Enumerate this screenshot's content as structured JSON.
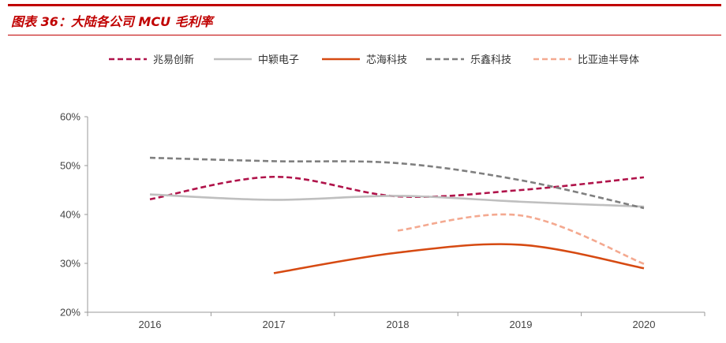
{
  "figure": {
    "title": "图表 36：大陆各公司 MCU 毛利率",
    "accent_color": "#c00000"
  },
  "chart_data": {
    "type": "line",
    "categories": [
      "2016",
      "2017",
      "2018",
      "2019",
      "2020"
    ],
    "ylim": [
      0.2,
      0.6
    ],
    "yticks": [
      0.2,
      0.3,
      0.4,
      0.5,
      0.6
    ],
    "ytick_labels": [
      "20%",
      "30%",
      "40%",
      "50%",
      "60%"
    ],
    "legend_position": "top",
    "grid": false,
    "series": [
      {
        "name": "兆易创新",
        "color": "#b0134a",
        "dash": true,
        "values": [
          0.431,
          0.477,
          0.437,
          0.45,
          0.476
        ]
      },
      {
        "name": "中颖电子",
        "color": "#bfbfbf",
        "dash": false,
        "values": [
          0.441,
          0.43,
          0.438,
          0.426,
          0.416
        ]
      },
      {
        "name": "芯海科技",
        "color": "#d64a12",
        "dash": false,
        "values": [
          null,
          0.28,
          0.322,
          0.338,
          0.29
        ]
      },
      {
        "name": "乐鑫科技",
        "color": "#7f7f7f",
        "dash": true,
        "values": [
          0.516,
          0.509,
          0.505,
          0.47,
          0.413
        ]
      },
      {
        "name": "比亚迪半导体",
        "color": "#f4a990",
        "dash": true,
        "values": [
          null,
          null,
          0.367,
          0.398,
          0.299
        ]
      }
    ]
  }
}
